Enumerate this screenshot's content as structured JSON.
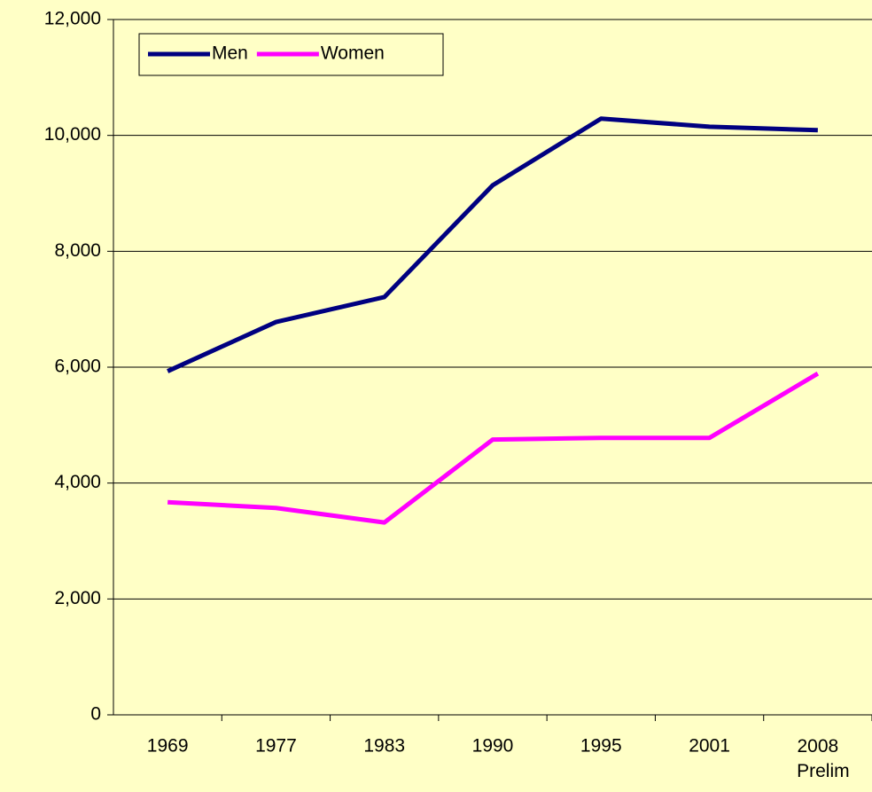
{
  "chart_data": {
    "type": "line",
    "categories": [
      "1969",
      "1977",
      "1983",
      "1990",
      "1995",
      "2001",
      "2008\nPrelim"
    ],
    "series": [
      {
        "name": "Men",
        "color": "#000080",
        "values": [
          5930,
          6780,
          7210,
          9140,
          10290,
          10150,
          10090
        ]
      },
      {
        "name": "Women",
        "color": "#ff00ff",
        "values": [
          3670,
          3570,
          3320,
          4750,
          4780,
          4780,
          5890
        ]
      }
    ],
    "ylim": [
      0,
      12000
    ],
    "yticks": [
      0,
      {
        "value": 2000,
        "label": "2,000"
      },
      {
        "value": 4000,
        "label": "4,000"
      },
      {
        "value": 6000,
        "label": "6,000"
      },
      {
        "value": 8000,
        "label": "8,000"
      },
      {
        "value": 10000,
        "label": "10,000"
      },
      {
        "value": 12000,
        "label": "12,000"
      }
    ],
    "grid": true,
    "legend": "top-left"
  }
}
